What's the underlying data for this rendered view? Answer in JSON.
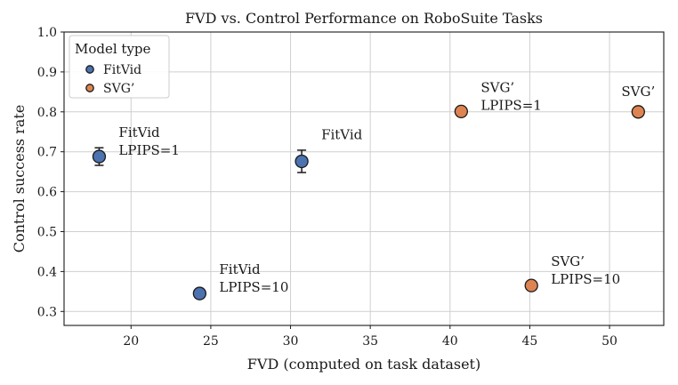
{
  "chart_data": {
    "type": "scatter",
    "title": "FVD vs. Control Performance on RoboSuite Tasks",
    "xlabel": "FVD (computed on task dataset)",
    "ylabel": "Control success rate",
    "xlim": [
      15.8,
      53.4
    ],
    "ylim": [
      0.265,
      1.0
    ],
    "xticks": [
      20,
      25,
      30,
      35,
      40,
      45,
      50
    ],
    "yticks": [
      0.3,
      0.4,
      0.5,
      0.6,
      0.7,
      0.8,
      0.9,
      1.0
    ],
    "xtick_labels": [
      "20",
      "25",
      "30",
      "35",
      "40",
      "45",
      "50"
    ],
    "ytick_labels": [
      "0.3",
      "0.4",
      "0.5",
      "0.6",
      "0.7",
      "0.8",
      "0.9",
      "1.0"
    ],
    "grid": true,
    "legend": {
      "title": "Model type",
      "placement": "top-left",
      "entries": [
        {
          "label": "FitVid",
          "color": "#4c72b0"
        },
        {
          "label": "SVG’",
          "color": "#dd8452"
        }
      ]
    },
    "points": [
      {
        "model": "FitVid",
        "x": 18.0,
        "y": 0.688,
        "err": 0.022,
        "label_lines": [
          "FitVid",
          "LPIPS=1"
        ]
      },
      {
        "model": "FitVid",
        "x": 24.3,
        "y": 0.345,
        "err": 0.011,
        "label_lines": [
          "FitVid",
          "LPIPS=10"
        ]
      },
      {
        "model": "FitVid",
        "x": 30.7,
        "y": 0.676,
        "err": 0.028,
        "label_lines": [
          "FitVid"
        ]
      },
      {
        "model": "SVG’",
        "x": 40.7,
        "y": 0.801,
        "err": 0,
        "label_lines": [
          "SVG’",
          "LPIPS=1"
        ]
      },
      {
        "model": "SVG’",
        "x": 45.1,
        "y": 0.365,
        "err": 0,
        "label_lines": [
          "SVG’",
          "LPIPS=10"
        ]
      },
      {
        "model": "SVG’",
        "x": 51.8,
        "y": 0.8,
        "err": 0,
        "label_lines": [
          "SVG’"
        ]
      }
    ]
  }
}
